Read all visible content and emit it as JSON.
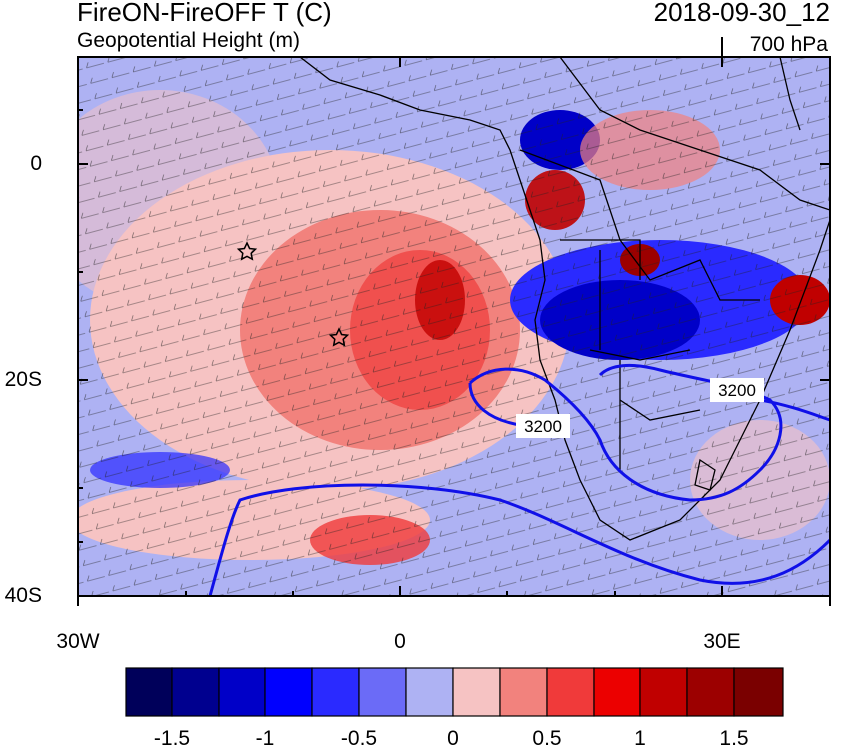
{
  "header": {
    "title": "FireON-FireOFF T (C)",
    "subtitle": "Geopotential Height (m)",
    "datetime": "2018-09-30_12",
    "level": "700 hPa"
  },
  "axes": {
    "y_labels": [
      "0",
      "20S",
      "40S"
    ],
    "x_labels": [
      "30W",
      "0",
      "30E"
    ]
  },
  "contours": {
    "label": "3200"
  },
  "colorbar": {
    "labels": [
      "-1.5",
      "-1",
      "-0.5",
      "0",
      "0.5",
      "1",
      "1.5"
    ],
    "colors": [
      "#00005a",
      "#00008f",
      "#0000c8",
      "#0000ff",
      "#2a2aff",
      "#6b6bf7",
      "#aeb2f3",
      "#f6c3c3",
      "#f2827d",
      "#f03a3a",
      "#ec0000",
      "#c00000",
      "#9c0000",
      "#7a0000"
    ]
  },
  "markers": {
    "icon": "star-icon"
  }
}
